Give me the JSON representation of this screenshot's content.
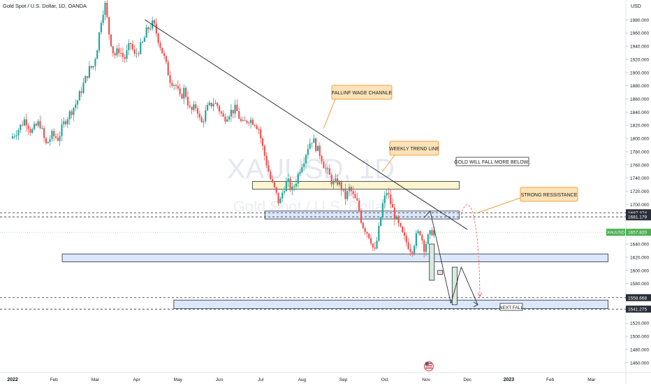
{
  "header": {
    "symbol_title": "Gold Spot / U.S. Dollar, 1D, OANDA",
    "currency": "USD"
  },
  "watermark": {
    "symbol": "XAUUSD, 1D",
    "description": "Gold Spot / U.S. Dollar"
  },
  "colors": {
    "up_candle": "#26a69a",
    "down_candle": "#ef5350",
    "zone_blue_fill": "#dbe7fb",
    "zone_blue_border": "#2a2e39",
    "zone_yellow_fill": "#fdf5cf",
    "callout_fill": "#fde3b8",
    "callout_border": "#f0a040",
    "price_tag": "#4caf50",
    "projection_arrow": "#f06b6b"
  },
  "price_tags": {
    "current_label": "XAUUSD",
    "current_value": "1657.820",
    "level_1": "1687.374",
    "level_2": "1681.179",
    "level_3": "1558.668",
    "level_4": "1541.275"
  },
  "annotations": {
    "falling_wedge": "FALLINF WAGE CHANNLE",
    "weekly_trend": "WEEKLY TREND LINE",
    "gold_will_fall": "GOLD WILL FALL MORE BELOW..",
    "strong_resistance": "STRONG RESSISTANCE",
    "next_fall": "NEXT FALL"
  },
  "chart_data": {
    "type": "candlestick",
    "title": "Gold Spot / U.S. Dollar, 1D, OANDA",
    "y_unit": "USD",
    "ylim": [
      1445,
      2010
    ],
    "y_ticks": [
      1460,
      1480,
      1500,
      1520,
      1540,
      1560,
      1580,
      1600,
      1620,
      1640,
      1660,
      1680,
      1700,
      1720,
      1740,
      1760,
      1780,
      1800,
      1820,
      1840,
      1860,
      1880,
      1900,
      1920,
      1940,
      1960,
      1980
    ],
    "y_tick_labels": [
      "1460.000",
      "1480.000",
      "1500.000",
      "1520.000",
      "1540.000",
      "1560.000",
      "1580.000",
      "1600.000",
      "1620.000",
      "1640.000",
      "1660.000",
      "1680.000",
      "1700.000",
      "1720.000",
      "1740.000",
      "1760.000",
      "1780.000",
      "1800.000",
      "1820.000",
      "1840.000",
      "1860.000",
      "1880.000",
      "1900.000",
      "1920.000",
      "1940.000",
      "1960.000",
      "1980.000"
    ],
    "x_labels": [
      "2022",
      "Feb",
      "Mar",
      "Apr",
      "May",
      "Jun",
      "Jul",
      "Aug",
      "Sep",
      "Oct",
      "Nov",
      "Dec",
      "2023",
      "Feb",
      "Mar"
    ],
    "x_label_months": [
      0,
      1,
      2,
      3,
      4,
      5,
      6,
      7,
      8,
      9,
      10,
      11,
      12,
      13,
      14
    ],
    "grid": false,
    "path_points": [
      [
        0.0,
        1800
      ],
      [
        0.2,
        1815
      ],
      [
        0.35,
        1830
      ],
      [
        0.5,
        1810
      ],
      [
        0.7,
        1825
      ],
      [
        0.85,
        1790
      ],
      [
        1.0,
        1805
      ],
      [
        1.15,
        1800
      ],
      [
        1.3,
        1825
      ],
      [
        1.45,
        1840
      ],
      [
        1.6,
        1855
      ],
      [
        1.75,
        1880
      ],
      [
        1.9,
        1905
      ],
      [
        2.0,
        1910
      ],
      [
        2.1,
        1940
      ],
      [
        2.2,
        1985
      ],
      [
        2.28,
        2005
      ],
      [
        2.38,
        1960
      ],
      [
        2.5,
        1925
      ],
      [
        2.62,
        1935
      ],
      [
        2.75,
        1920
      ],
      [
        2.9,
        1945
      ],
      [
        3.0,
        1925
      ],
      [
        3.1,
        1935
      ],
      [
        3.2,
        1945
      ],
      [
        3.3,
        1965
      ],
      [
        3.45,
        1975
      ],
      [
        3.55,
        1955
      ],
      [
        3.7,
        1925
      ],
      [
        3.85,
        1890
      ],
      [
        4.0,
        1880
      ],
      [
        4.1,
        1860
      ],
      [
        4.2,
        1875
      ],
      [
        4.35,
        1840
      ],
      [
        4.5,
        1850
      ],
      [
        4.6,
        1820
      ],
      [
        4.75,
        1845
      ],
      [
        4.9,
        1855
      ],
      [
        5.0,
        1850
      ],
      [
        5.15,
        1830
      ],
      [
        5.3,
        1840
      ],
      [
        5.45,
        1845
      ],
      [
        5.6,
        1820
      ],
      [
        5.75,
        1830
      ],
      [
        5.9,
        1825
      ],
      [
        6.0,
        1815
      ],
      [
        6.1,
        1785
      ],
      [
        6.2,
        1760
      ],
      [
        6.3,
        1735
      ],
      [
        6.4,
        1720
      ],
      [
        6.5,
        1700
      ],
      [
        6.6,
        1725
      ],
      [
        6.7,
        1735
      ],
      [
        6.8,
        1720
      ],
      [
        6.9,
        1735
      ],
      [
        7.0,
        1755
      ],
      [
        7.1,
        1770
      ],
      [
        7.2,
        1790
      ],
      [
        7.3,
        1800
      ],
      [
        7.4,
        1785
      ],
      [
        7.5,
        1775
      ],
      [
        7.6,
        1755
      ],
      [
        7.7,
        1745
      ],
      [
        7.8,
        1730
      ],
      [
        7.9,
        1735
      ],
      [
        8.0,
        1725
      ],
      [
        8.1,
        1710
      ],
      [
        8.2,
        1725
      ],
      [
        8.3,
        1710
      ],
      [
        8.4,
        1700
      ],
      [
        8.5,
        1670
      ],
      [
        8.6,
        1660
      ],
      [
        8.7,
        1650
      ],
      [
        8.8,
        1625
      ],
      [
        8.9,
        1660
      ],
      [
        9.0,
        1700
      ],
      [
        9.1,
        1720
      ],
      [
        9.2,
        1700
      ],
      [
        9.3,
        1680
      ],
      [
        9.4,
        1665
      ],
      [
        9.5,
        1650
      ],
      [
        9.6,
        1640
      ],
      [
        9.7,
        1630
      ],
      [
        9.8,
        1650
      ],
      [
        9.9,
        1660
      ],
      [
        10.0,
        1635
      ],
      [
        10.1,
        1650
      ],
      [
        10.2,
        1660
      ]
    ],
    "trend_line": [
      [
        3.2,
        1980
      ],
      [
        11.0,
        1662
      ]
    ],
    "zones": [
      {
        "name": "yellow-resistance-zone",
        "x0": 5.8,
        "x1": 10.8,
        "y0": 1723,
        "y1": 1735
      },
      {
        "name": "blue-resistance-zone",
        "x0": 6.1,
        "x1": 10.8,
        "y0": 1678,
        "y1": 1690
      },
      {
        "name": "blue-support-zone",
        "x0": 1.2,
        "x1": 14.4,
        "y0": 1613,
        "y1": 1625
      },
      {
        "name": "blue-target-zone",
        "x0": 3.9,
        "x1": 14.4,
        "y0": 1542,
        "y1": 1555
      }
    ],
    "projection_boxes": [
      {
        "name": "projection-box-1",
        "x0": 10.08,
        "x1": 10.2,
        "y0": 1585,
        "y1": 1640,
        "kind": "up"
      },
      {
        "name": "projection-box-2",
        "x0": 10.28,
        "x1": 10.4,
        "y0": 1594,
        "y1": 1600,
        "kind": "down"
      },
      {
        "name": "projection-box-3",
        "x0": 10.63,
        "x1": 10.75,
        "y0": 1548,
        "y1": 1605,
        "kind": "up"
      }
    ],
    "projection_path": [
      [
        9.95,
        1680
      ],
      [
        10.1,
        1690
      ],
      [
        10.6,
        1550
      ],
      [
        10.85,
        1605
      ],
      [
        11.25,
        1548
      ]
    ],
    "resistance_arc": [
      [
        10.85,
        1684
      ],
      [
        11.0,
        1720
      ],
      [
        11.28,
        1700
      ],
      [
        11.3,
        1560
      ]
    ],
    "horizontal_levels": [
      1687.374,
      1681.179,
      1558.668,
      1541.275
    ],
    "current_price": 1657.82
  }
}
